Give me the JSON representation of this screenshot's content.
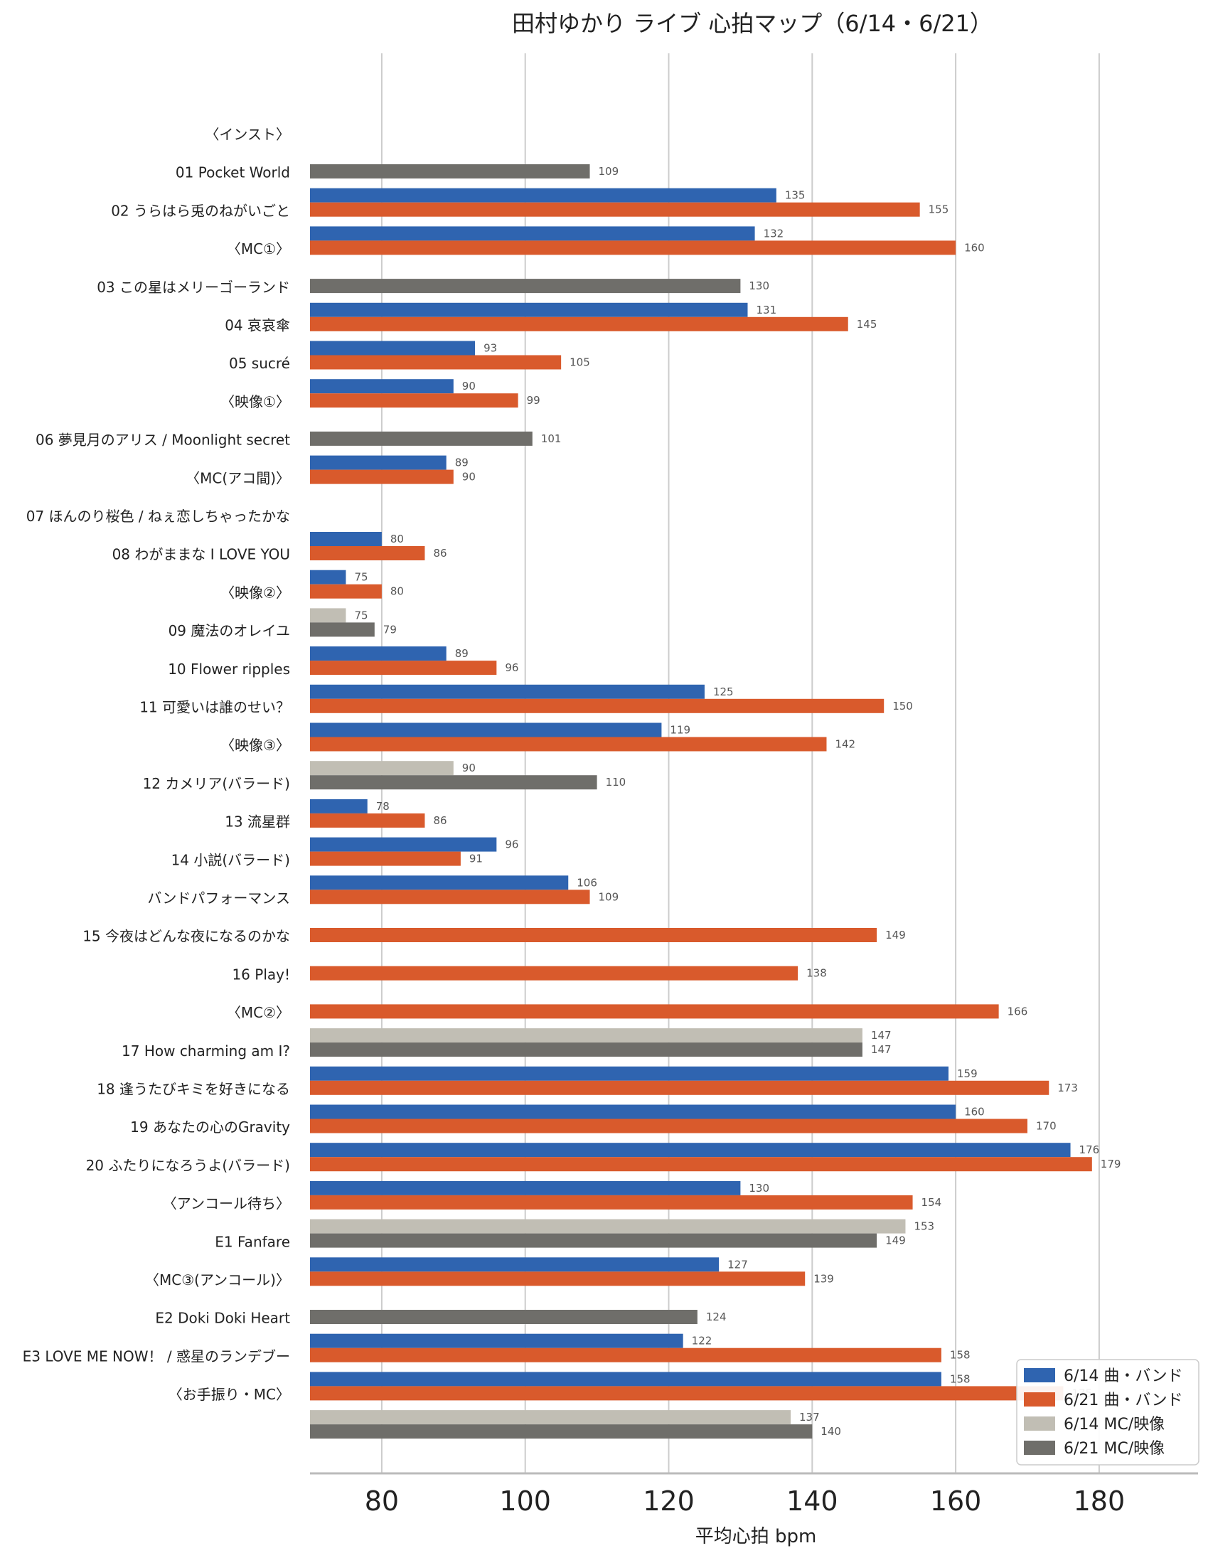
{
  "chart_data": {
    "type": "bar",
    "orientation": "horizontal",
    "title": "田村ゆかり ライブ 心拍マップ（6/14・6/21）",
    "xlabel": "平均心拍 bpm",
    "xlim": [
      70,
      185
    ],
    "xticks": [
      80,
      100,
      120,
      140,
      160,
      180
    ],
    "grid": "vertical",
    "legend_position": "bottom-right",
    "colors": {
      "s614_song": "#2f64b0",
      "s621_song": "#d95a2c",
      "s614_mc": "#c1beb4",
      "s621_mc": "#6f6e6a",
      "grid": "#cccccc"
    },
    "legend": [
      {
        "label": "6/14 曲・バンド",
        "key": "s614_song"
      },
      {
        "label": "6/21 曲・バンド",
        "key": "s621_song"
      },
      {
        "label": "6/14 MC/映像",
        "key": "s614_mc"
      },
      {
        "label": "6/21 MC/映像",
        "key": "s621_mc"
      }
    ],
    "categories": [
      {
        "label": "〈インスト〉",
        "kind": "mc",
        "v614": null,
        "v621": 109
      },
      {
        "label": "01 Pocket World",
        "kind": "song",
        "v614": 135,
        "v621": 155
      },
      {
        "label": "02 うらはら兎のねがいごと",
        "kind": "song",
        "v614": 132,
        "v621": 160
      },
      {
        "label": "〈MC①〉",
        "kind": "mc",
        "v614": null,
        "v621": 130
      },
      {
        "label": "03 この星はメリーゴーランド",
        "kind": "song",
        "v614": 131,
        "v621": 145
      },
      {
        "label": "04 哀哀傘",
        "kind": "song",
        "v614": 93,
        "v621": 105
      },
      {
        "label": "05 sucré",
        "kind": "song",
        "v614": 90,
        "v621": 99
      },
      {
        "label": "〈映像①〉",
        "kind": "mc",
        "v614": null,
        "v621": 101
      },
      {
        "label": "06 夢見月のアリス / Moonlight secret",
        "kind": "song",
        "v614": 89,
        "v621": 90
      },
      {
        "label": "〈MC(アコ間)〉",
        "kind": "mc",
        "v614": null,
        "v621": null
      },
      {
        "label": "07 ほんのり桜色 / ねぇ恋しちゃったかな",
        "kind": "song",
        "v614": 80,
        "v621": 86
      },
      {
        "label": "08 わがままな I LOVE YOU",
        "kind": "song",
        "v614": 75,
        "v621": 80
      },
      {
        "label": "〈映像②〉",
        "kind": "mc",
        "v614": 75,
        "v621": 79
      },
      {
        "label": "09 魔法のオレイユ",
        "kind": "song",
        "v614": 89,
        "v621": 96
      },
      {
        "label": "10 Flower ripples",
        "kind": "song",
        "v614": 125,
        "v621": 150
      },
      {
        "label": "11 可愛いは誰のせい？",
        "kind": "song",
        "v614": 119,
        "v621": 142
      },
      {
        "label": "〈映像③〉",
        "kind": "mc",
        "v614": 90,
        "v621": 110
      },
      {
        "label": "12 カメリア(バラード)",
        "kind": "song",
        "v614": 78,
        "v621": 86
      },
      {
        "label": "13 流星群",
        "kind": "song",
        "v614": 96,
        "v621": 91
      },
      {
        "label": "14 小説(バラード)",
        "kind": "song",
        "v614": 106,
        "v621": 109
      },
      {
        "label": "バンドパフォーマンス",
        "kind": "song",
        "v614": null,
        "v621": 149
      },
      {
        "label": "15 今夜はどんな夜になるのかな",
        "kind": "song",
        "v614": null,
        "v621": 138
      },
      {
        "label": "16 Play!",
        "kind": "song",
        "v614": null,
        "v621": 166
      },
      {
        "label": "〈MC②〉",
        "kind": "mc",
        "v614": 147,
        "v621": 147
      },
      {
        "label": "17 How charming am I?",
        "kind": "song",
        "v614": 159,
        "v621": 173
      },
      {
        "label": "18 逢うたびキミを好きになる",
        "kind": "song",
        "v614": 160,
        "v621": 170
      },
      {
        "label": "19 あなたの心のGravity",
        "kind": "song",
        "v614": 176,
        "v621": 179
      },
      {
        "label": "20 ふたりになろうよ(バラード)",
        "kind": "song",
        "v614": 130,
        "v621": 154
      },
      {
        "label": "〈アンコール待ち〉",
        "kind": "mc",
        "v614": 153,
        "v621": 149
      },
      {
        "label": "E1 Fanfare",
        "kind": "song",
        "v614": 127,
        "v621": 139
      },
      {
        "label": "〈MC③(アンコール)〉",
        "kind": "mc",
        "v614": null,
        "v621": 124
      },
      {
        "label": "E2 Doki Doki Heart",
        "kind": "song",
        "v614": 122,
        "v621": 158
      },
      {
        "label": "E3 LOVE ME NOW！ / 惑星のランデブー",
        "kind": "song",
        "v614": 158,
        "v621": 175
      },
      {
        "label": "〈お手振り・MC〉",
        "kind": "mc",
        "v614": 137,
        "v621": 140
      }
    ]
  }
}
